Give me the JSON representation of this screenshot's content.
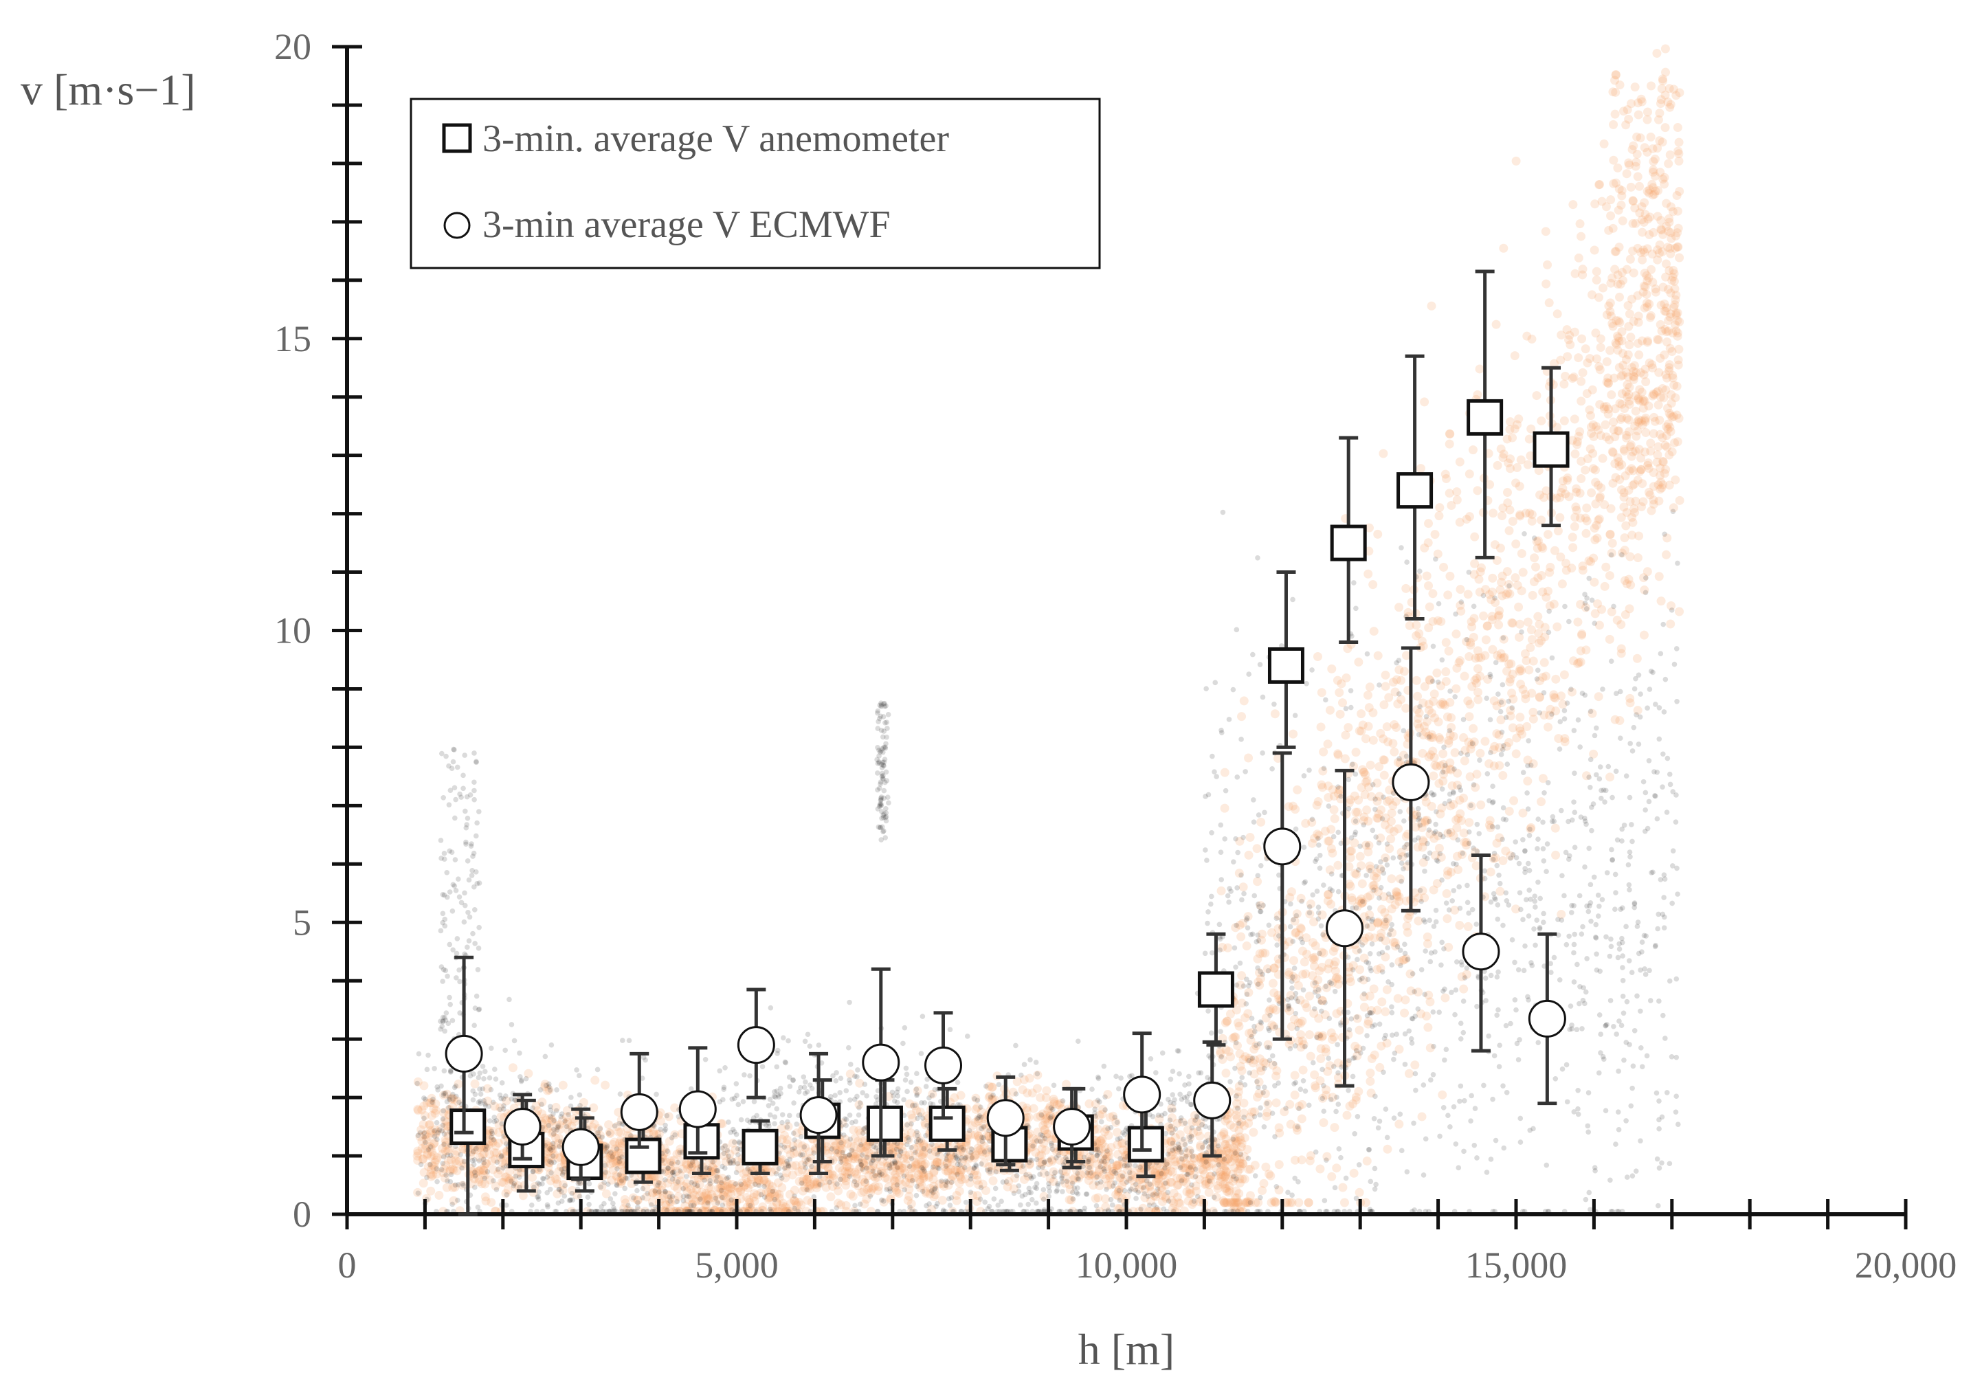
{
  "chart_data": {
    "type": "scatter",
    "title": "",
    "xlabel": "h [m]",
    "ylabel": "v [m·s−1]",
    "xlim": [
      0,
      20000
    ],
    "ylim": [
      0,
      20
    ],
    "x_ticks": [
      "0",
      "5,000",
      "10,000",
      "15,000",
      "20,000"
    ],
    "y_ticks": [
      "0",
      "5",
      "10",
      "15",
      "20"
    ],
    "legend": [
      {
        "label": "3-min. average V anemometer",
        "marker": "square"
      },
      {
        "label": "3-min average V ECMWF",
        "marker": "circle"
      }
    ],
    "colors": {
      "orange_cloud": "#f6a36a",
      "black_cloud": "#1d1d1d",
      "marker_stroke": "#111111",
      "marker_fill": "#ffffff"
    },
    "series": [
      {
        "name": "3-min. average V anemometer",
        "marker": "square",
        "x": [
          1550,
          2300,
          3050,
          3800,
          4550,
          5300,
          6100,
          6900,
          7700,
          8500,
          9350,
          10250,
          11150,
          12050,
          12850,
          13700,
          14600,
          15450
        ],
        "y": [
          1.5,
          1.1,
          0.9,
          1.0,
          1.25,
          1.15,
          1.6,
          1.55,
          1.55,
          1.2,
          1.4,
          1.2,
          3.85,
          9.4,
          11.5,
          12.4,
          13.65,
          13.1
        ],
        "yerr_low": [
          1.5,
          0.7,
          0.5,
          0.45,
          0.55,
          0.45,
          0.7,
          0.55,
          0.45,
          0.45,
          0.5,
          0.55,
          0.95,
          1.4,
          1.7,
          2.2,
          2.4,
          1.3
        ],
        "yerr_high": [
          0.25,
          0.85,
          0.75,
          0.55,
          0.55,
          0.45,
          0.7,
          0.75,
          0.6,
          0.55,
          0.75,
          0.85,
          0.95,
          1.6,
          1.8,
          2.3,
          2.5,
          1.4
        ]
      },
      {
        "name": "3-min average V ECMWF",
        "marker": "circle",
        "x": [
          1500,
          2250,
          3000,
          3750,
          4500,
          5250,
          6050,
          6850,
          7650,
          8450,
          9300,
          10200,
          11100,
          12000,
          12800,
          13650,
          14550,
          15400
        ],
        "y": [
          2.75,
          1.5,
          1.15,
          1.75,
          1.8,
          2.9,
          1.7,
          2.6,
          2.55,
          1.65,
          1.5,
          2.05,
          1.95,
          6.3,
          4.9,
          7.4,
          4.5,
          3.35
        ],
        "yerr_low": [
          1.35,
          0.55,
          0.55,
          0.6,
          0.75,
          0.9,
          1.0,
          1.6,
          0.9,
          0.8,
          0.7,
          0.95,
          0.95,
          3.3,
          2.7,
          2.2,
          1.7,
          1.45
        ],
        "yerr_high": [
          1.65,
          0.55,
          0.65,
          1.0,
          1.05,
          0.95,
          1.05,
          1.6,
          0.9,
          0.7,
          0.65,
          1.05,
          1.0,
          1.6,
          2.7,
          2.3,
          1.65,
          1.45
        ]
      }
    ],
    "background_clouds": [
      {
        "name": "ECMWF profile samples",
        "color": "#f6a36a",
        "description": "dense orange sample points; low values below 12,000 m, sharp rise above 11,500 m reaching 19 m·s−1 near 17,000 m"
      },
      {
        "name": "anemometer profile samples",
        "color": "#1d1d1d",
        "description": "sparse gray-black sample points with spikes near 1,300 m and 6,900 m and broad scatter above 12,000 m"
      }
    ]
  }
}
